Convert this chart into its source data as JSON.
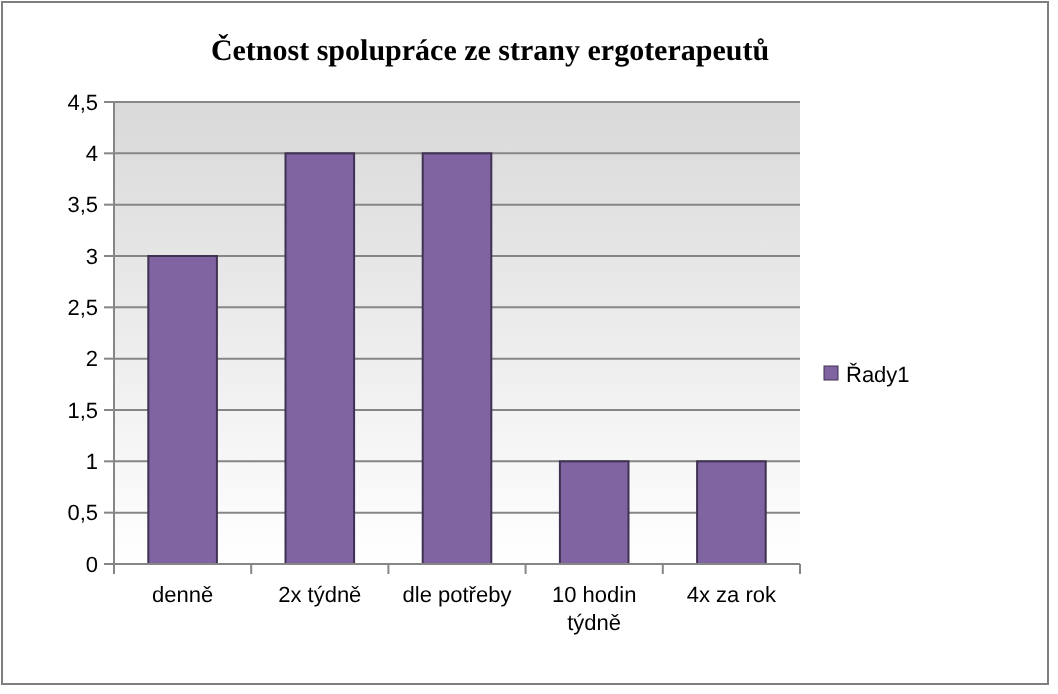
{
  "chart_data": {
    "type": "bar",
    "title": "Četnost spolupráce ze strany ergoterapeutů",
    "categories": [
      "denně",
      "2x týdně",
      "dle potřeby",
      "10 hodin týdně",
      "4x za rok"
    ],
    "series": [
      {
        "name": "Řady1",
        "color": "#8064a2",
        "values": [
          3,
          4,
          4,
          1,
          1
        ]
      }
    ],
    "ylim": [
      0,
      4.5
    ],
    "yticks": [
      0,
      {
        "value": 0.5,
        "label": "0,5"
      },
      1,
      {
        "value": 1.5,
        "label": "1,5"
      },
      2,
      {
        "value": 2.5,
        "label": "2,5"
      },
      3,
      {
        "value": 3.5,
        "label": "3,5"
      },
      4,
      {
        "value": 4.5,
        "label": "4,5"
      }
    ],
    "grid": "y",
    "legend": "right"
  }
}
